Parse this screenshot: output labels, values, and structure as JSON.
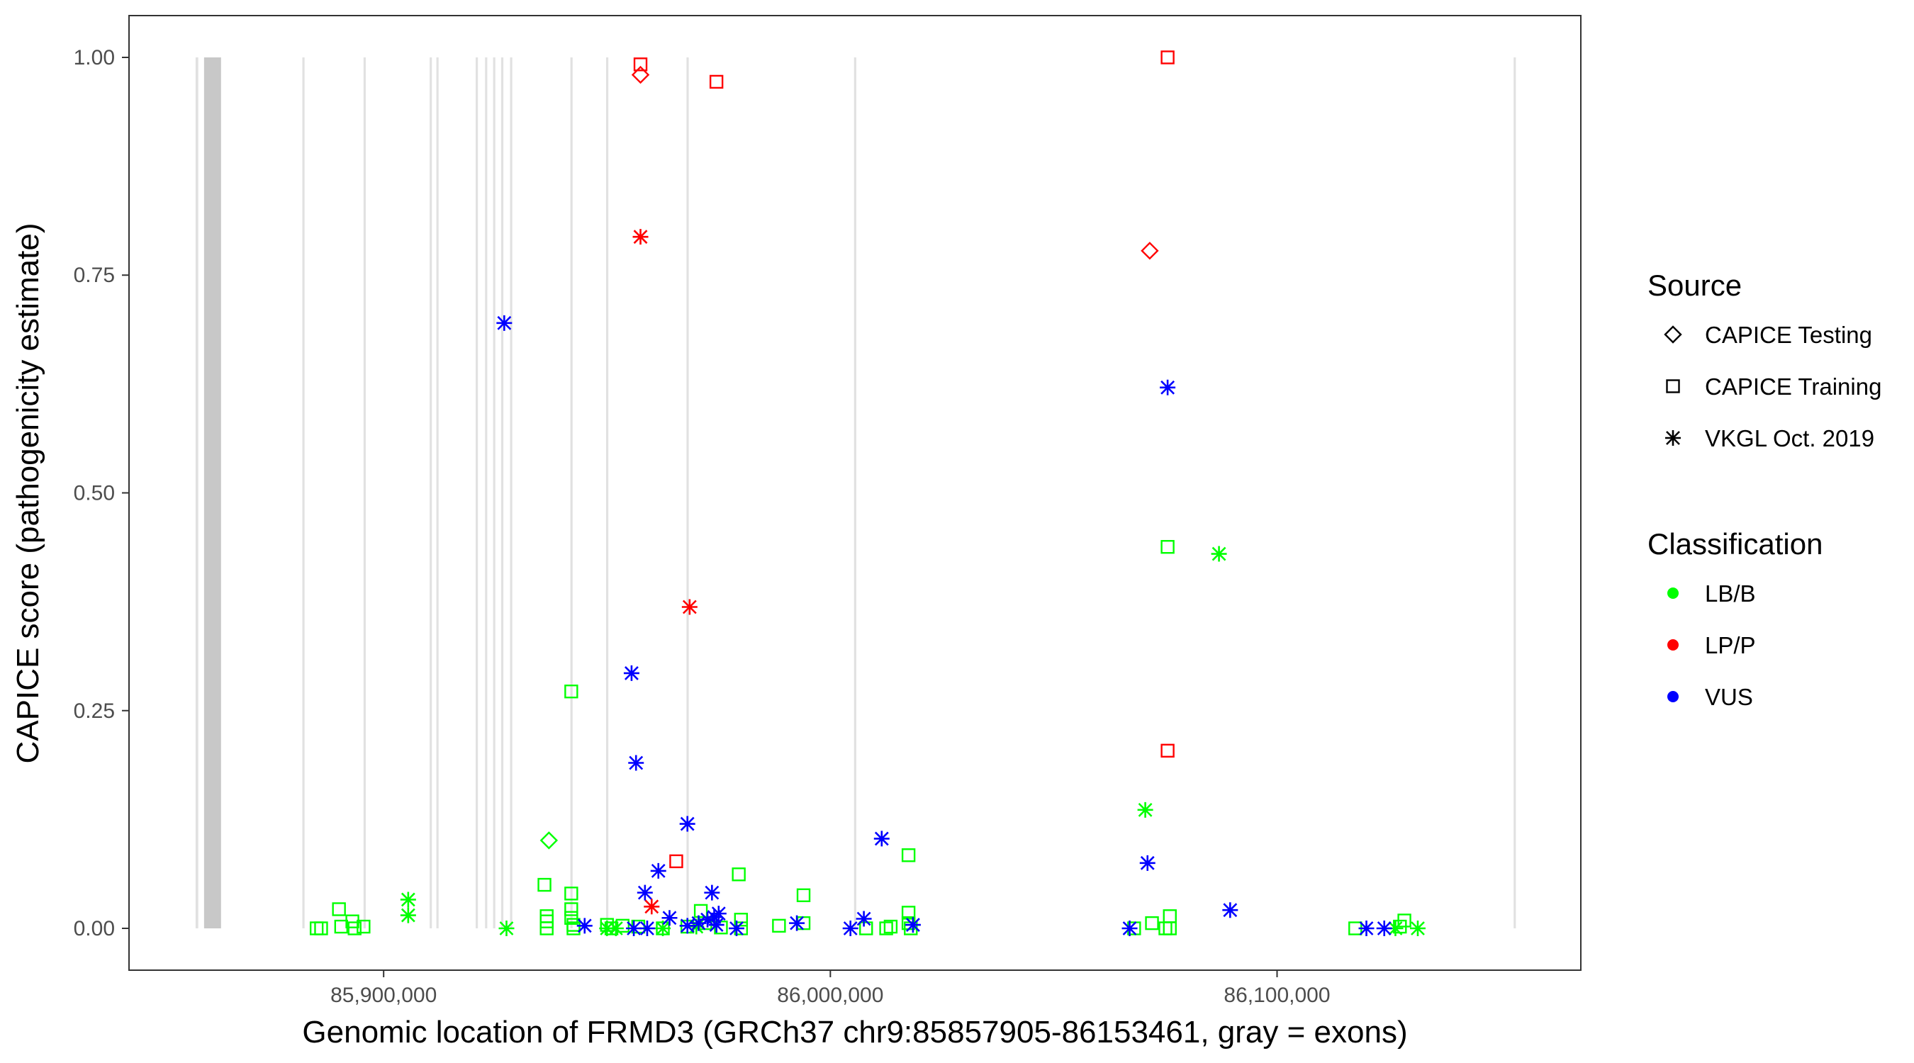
{
  "chart_data": {
    "type": "scatter",
    "xlabel": "Genomic location of FRMD3 (GRCh37 chr9:85857905-86153461, gray = exons)",
    "ylabel": "CAPICE score (pathogenicity estimate)",
    "xlim": [
      85843000,
      86168000
    ],
    "ylim": [
      -0.048,
      1.048
    ],
    "x_ticks": [
      85900000,
      86000000,
      86100000
    ],
    "x_tick_labels": [
      "85,900,000",
      "86,000,000",
      "86,100,000"
    ],
    "y_ticks": [
      0,
      0.25,
      0.5,
      0.75,
      1.0
    ],
    "y_tick_labels": [
      "0.00",
      "0.25",
      "0.50",
      "0.75",
      "1.00"
    ],
    "grid": false,
    "legend_position": "right",
    "legend": {
      "source_title": "Source",
      "source_items": [
        {
          "label": "CAPICE Testing",
          "shape": "diamond"
        },
        {
          "label": "CAPICE Training",
          "shape": "square"
        },
        {
          "label": "VKGL Oct. 2019",
          "shape": "asterisk"
        }
      ],
      "classification_title": "Classification",
      "classification_items": [
        {
          "label": "LB/B",
          "color": "#00ff00"
        },
        {
          "label": "LP/P",
          "color": "#ff0000"
        },
        {
          "label": "VUS",
          "color": "#0000ff"
        }
      ]
    },
    "exons": [
      {
        "start": 85857905,
        "end": 85858500
      },
      {
        "start": 85859800,
        "end": 85863600
      },
      {
        "start": 85881800,
        "end": 85882300
      },
      {
        "start": 85895500,
        "end": 85896000
      },
      {
        "start": 85910300,
        "end": 85910800
      },
      {
        "start": 85911800,
        "end": 85912300
      },
      {
        "start": 85920600,
        "end": 85921100
      },
      {
        "start": 85922700,
        "end": 85923200
      },
      {
        "start": 85924500,
        "end": 85925000
      },
      {
        "start": 85926300,
        "end": 85926800
      },
      {
        "start": 85928300,
        "end": 85928800
      },
      {
        "start": 85941800,
        "end": 85942300
      },
      {
        "start": 85949800,
        "end": 85950300
      },
      {
        "start": 85967800,
        "end": 85968300
      },
      {
        "start": 86005300,
        "end": 86005800
      },
      {
        "start": 86152961,
        "end": 86153461
      }
    ],
    "series": [
      {
        "source": "CAPICE Testing",
        "classification": "LB/B",
        "shape": "diamond",
        "color": "#00ff00",
        "points": [
          [
            85937000,
            0.101
          ]
        ]
      },
      {
        "source": "CAPICE Testing",
        "classification": "LP/P",
        "shape": "diamond",
        "color": "#ff0000",
        "points": [
          [
            85957500,
            0.98
          ],
          [
            86071500,
            0.778
          ]
        ]
      },
      {
        "source": "CAPICE Training",
        "classification": "LB/B",
        "shape": "square",
        "color": "#00ff00",
        "points": [
          [
            85885000,
            0.0
          ],
          [
            85886000,
            0.0
          ],
          [
            85890000,
            0.022
          ],
          [
            85890500,
            0.002
          ],
          [
            85893000,
            0.008
          ],
          [
            85893500,
            0.0
          ],
          [
            85895500,
            0.002
          ],
          [
            85936000,
            0.05
          ],
          [
            85936500,
            0.014
          ],
          [
            85936500,
            0.008
          ],
          [
            85936500,
            0.0
          ],
          [
            85942000,
            0.272
          ],
          [
            85942000,
            0.04
          ],
          [
            85942000,
            0.022
          ],
          [
            85942000,
            0.012
          ],
          [
            85942500,
            0.004
          ],
          [
            85942500,
            0.0
          ],
          [
            85950000,
            0.004
          ],
          [
            85951000,
            0.0
          ],
          [
            85953500,
            0.003
          ],
          [
            85957000,
            0.002
          ],
          [
            85962500,
            0.0
          ],
          [
            85968000,
            0.002
          ],
          [
            85971000,
            0.02
          ],
          [
            85972000,
            0.006
          ],
          [
            85975500,
            0.001
          ],
          [
            85979500,
            0.062
          ],
          [
            85980000,
            0.01
          ],
          [
            85980000,
            0.0
          ],
          [
            85988500,
            0.003
          ],
          [
            85994000,
            0.038
          ],
          [
            85994000,
            0.006
          ],
          [
            86008000,
            0.0
          ],
          [
            86012500,
            0.0
          ],
          [
            86013500,
            0.002
          ],
          [
            86017500,
            0.084
          ],
          [
            86017500,
            0.018
          ],
          [
            86017500,
            0.006
          ],
          [
            86018000,
            0.0
          ],
          [
            86068000,
            0.0
          ],
          [
            86072000,
            0.006
          ],
          [
            86075000,
            0.0
          ],
          [
            86075500,
            0.438
          ],
          [
            86076000,
            0.014
          ],
          [
            86076000,
            0.0
          ],
          [
            86117500,
            0.0
          ],
          [
            86127500,
            0.002
          ],
          [
            86128500,
            0.009
          ]
        ]
      },
      {
        "source": "CAPICE Training",
        "classification": "LP/P",
        "shape": "square",
        "color": "#ff0000",
        "points": [
          [
            85957500,
            0.992
          ],
          [
            85974500,
            0.972
          ],
          [
            85965500,
            0.077
          ],
          [
            86075500,
            1.0
          ],
          [
            86075500,
            0.204
          ]
        ]
      },
      {
        "source": "VKGL Oct. 2019",
        "classification": "LB/B",
        "shape": "asterisk",
        "color": "#00ff00",
        "points": [
          [
            85905500,
            0.033
          ],
          [
            85905500,
            0.015
          ],
          [
            85927500,
            0.0
          ],
          [
            85950000,
            0.0
          ],
          [
            85952000,
            0.0
          ],
          [
            85962500,
            0.0
          ],
          [
            85970000,
            0.002
          ],
          [
            86070500,
            0.136
          ],
          [
            86087000,
            0.43
          ],
          [
            86126500,
            0.0
          ],
          [
            86131500,
            0.0
          ]
        ]
      },
      {
        "source": "VKGL Oct. 2019",
        "classification": "LP/P",
        "shape": "asterisk",
        "color": "#ff0000",
        "points": [
          [
            85957500,
            0.794
          ],
          [
            85968500,
            0.369
          ],
          [
            85960000,
            0.025
          ]
        ]
      },
      {
        "source": "VKGL Oct. 2019",
        "classification": "VUS",
        "shape": "asterisk",
        "color": "#0000ff",
        "points": [
          [
            85927000,
            0.695
          ],
          [
            85955500,
            0.293
          ],
          [
            85956500,
            0.19
          ],
          [
            85968000,
            0.12
          ],
          [
            85958500,
            0.041
          ],
          [
            85961500,
            0.066
          ],
          [
            85973500,
            0.041
          ],
          [
            85945000,
            0.003
          ],
          [
            85956000,
            0.0
          ],
          [
            85959000,
            0.0
          ],
          [
            85964000,
            0.012
          ],
          [
            85968000,
            0.003
          ],
          [
            85970500,
            0.006
          ],
          [
            85972500,
            0.01
          ],
          [
            85974000,
            0.013
          ],
          [
            85974500,
            0.004
          ],
          [
            85975000,
            0.017
          ],
          [
            85979000,
            0.0
          ],
          [
            85992500,
            0.006
          ],
          [
            86004500,
            0.0
          ],
          [
            86007500,
            0.011
          ],
          [
            86011500,
            0.103
          ],
          [
            86018500,
            0.004
          ],
          [
            86071000,
            0.075
          ],
          [
            86075500,
            0.621
          ],
          [
            86067000,
            0.0
          ],
          [
            86089500,
            0.021
          ],
          [
            86120000,
            0.0
          ],
          [
            86124000,
            0.0
          ]
        ]
      }
    ]
  }
}
